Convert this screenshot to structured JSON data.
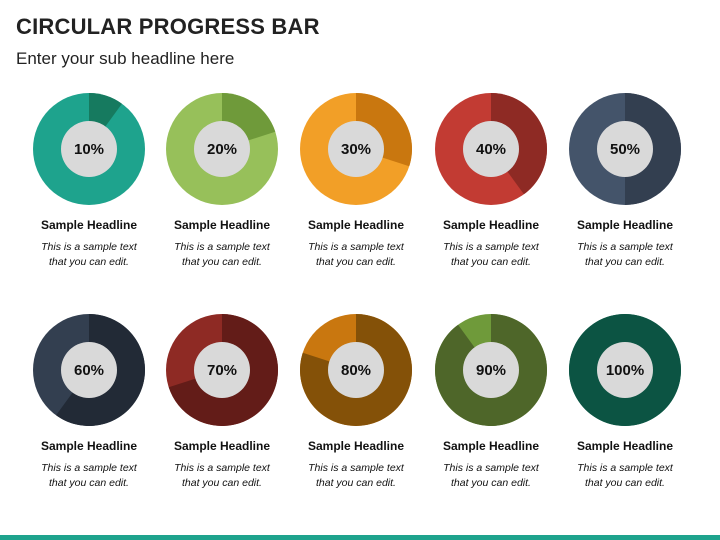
{
  "title": "CIRCULAR PROGRESS BAR",
  "subtitle": "Enter your sub headline here",
  "items": [
    {
      "label": "10%",
      "value": 10,
      "headline": "Sample Headline",
      "text1": "This is a sample text",
      "text2": "that you can edit.",
      "base_color": "#1ea38d",
      "fill_color": "#167a5f"
    },
    {
      "label": "20%",
      "value": 20,
      "headline": "Sample Headline",
      "text1": "This is a sample text",
      "text2": "that you can edit.",
      "base_color": "#97c05a",
      "fill_color": "#6f9a3a"
    },
    {
      "label": "30%",
      "value": 30,
      "headline": "Sample Headline",
      "text1": "This is a sample text",
      "text2": "that you can edit.",
      "base_color": "#f29f27",
      "fill_color": "#c9770f"
    },
    {
      "label": "40%",
      "value": 40,
      "headline": "Sample Headline",
      "text1": "This is a sample text",
      "text2": "that you can edit.",
      "base_color": "#c23b33",
      "fill_color": "#8e2a24"
    },
    {
      "label": "50%",
      "value": 50,
      "headline": "Sample Headline",
      "text1": "This is a sample text",
      "text2": "that you can edit.",
      "base_color": "#44546a",
      "fill_color": "#333f50"
    },
    {
      "label": "60%",
      "value": 60,
      "headline": "Sample Headline",
      "text1": "This is a sample text",
      "text2": "that you can edit.",
      "base_color": "#333f50",
      "fill_color": "#222a36"
    },
    {
      "label": "70%",
      "value": 70,
      "headline": "Sample Headline",
      "text1": "This is a sample text",
      "text2": "that you can edit.",
      "base_color": "#8e2a24",
      "fill_color": "#631c18"
    },
    {
      "label": "80%",
      "value": 80,
      "headline": "Sample Headline",
      "text1": "This is a sample text",
      "text2": "that you can edit.",
      "base_color": "#c9770f",
      "fill_color": "#845108"
    },
    {
      "label": "90%",
      "value": 90,
      "headline": "Sample Headline",
      "text1": "This is a sample text",
      "text2": "that you can edit.",
      "base_color": "#6f9a3a",
      "fill_color": "#4e6629"
    },
    {
      "label": "100%",
      "value": 100,
      "headline": "Sample Headline",
      "text1": "This is a sample text",
      "text2": "that you can edit.",
      "base_color": "#167a5f",
      "fill_color": "#0c5443"
    }
  ],
  "colors": {
    "inner_circle": "#d9d9d9",
    "bottom_bar": "#1ea38d"
  }
}
